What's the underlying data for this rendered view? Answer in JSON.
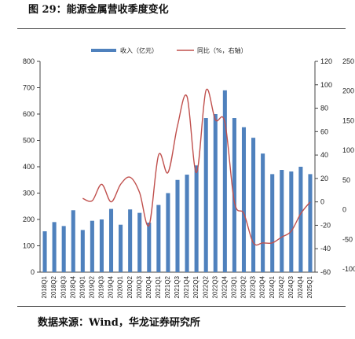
{
  "page": {
    "title": "图 29：能源金属营收季度变化",
    "source": "数据来源：Wind，华龙证券研究所"
  },
  "colors": {
    "bar": "#4f81bd",
    "line": "#c0504d",
    "axis": "#444444"
  },
  "chart_data": {
    "type": "bar",
    "title": "",
    "categories": [
      "2018Q1",
      "2018Q2",
      "2018Q3",
      "2018Q4",
      "2019Q1",
      "2019Q2",
      "2019Q3",
      "2019Q4",
      "2020Q1",
      "2020Q2",
      "2020Q3",
      "2020Q4",
      "2021Q1",
      "2021Q2",
      "2021Q3",
      "2021Q4",
      "2022Q1",
      "2022Q2",
      "2022Q3",
      "2022Q4",
      "2023Q1",
      "2023Q2",
      "2023Q3",
      "2023Q4",
      "2024Q1",
      "2024Q2",
      "2024Q3",
      "2024Q4",
      "2025Q1"
    ],
    "series": [
      {
        "name": "收入（亿元）",
        "axis": "left",
        "kind": "bar",
        "values": [
          155,
          190,
          175,
          235,
          160,
          195,
          200,
          240,
          180,
          238,
          225,
          188,
          255,
          300,
          350,
          370,
          405,
          585,
          600,
          690,
          585,
          550,
          510,
          450,
          372,
          388,
          382,
          400,
          372
        ]
      },
      {
        "name": "同比（%，右轴）",
        "axis": "right",
        "kind": "line",
        "values": [
          null,
          null,
          null,
          null,
          3,
          1,
          15,
          0,
          15,
          21,
          8,
          -20,
          40,
          25,
          65,
          90,
          25,
          95,
          70,
          68,
          0,
          -10,
          -35,
          -35,
          -35,
          -30,
          -25,
          -10,
          0
        ]
      }
    ],
    "y_left": {
      "min": 0,
      "max": 800,
      "ticks": [
        0,
        100,
        200,
        300,
        400,
        500,
        600,
        700,
        800
      ]
    },
    "y_right": {
      "min": -60,
      "max": 120,
      "ticks": [
        -60,
        -40,
        -20,
        0,
        20,
        40,
        60,
        80,
        100,
        120
      ]
    },
    "clipped_axis_ticks": [
      "250",
      "200",
      "150",
      "100",
      "50",
      "0",
      "-50",
      "-100"
    ],
    "legend_position": "top-center",
    "grid": false
  }
}
